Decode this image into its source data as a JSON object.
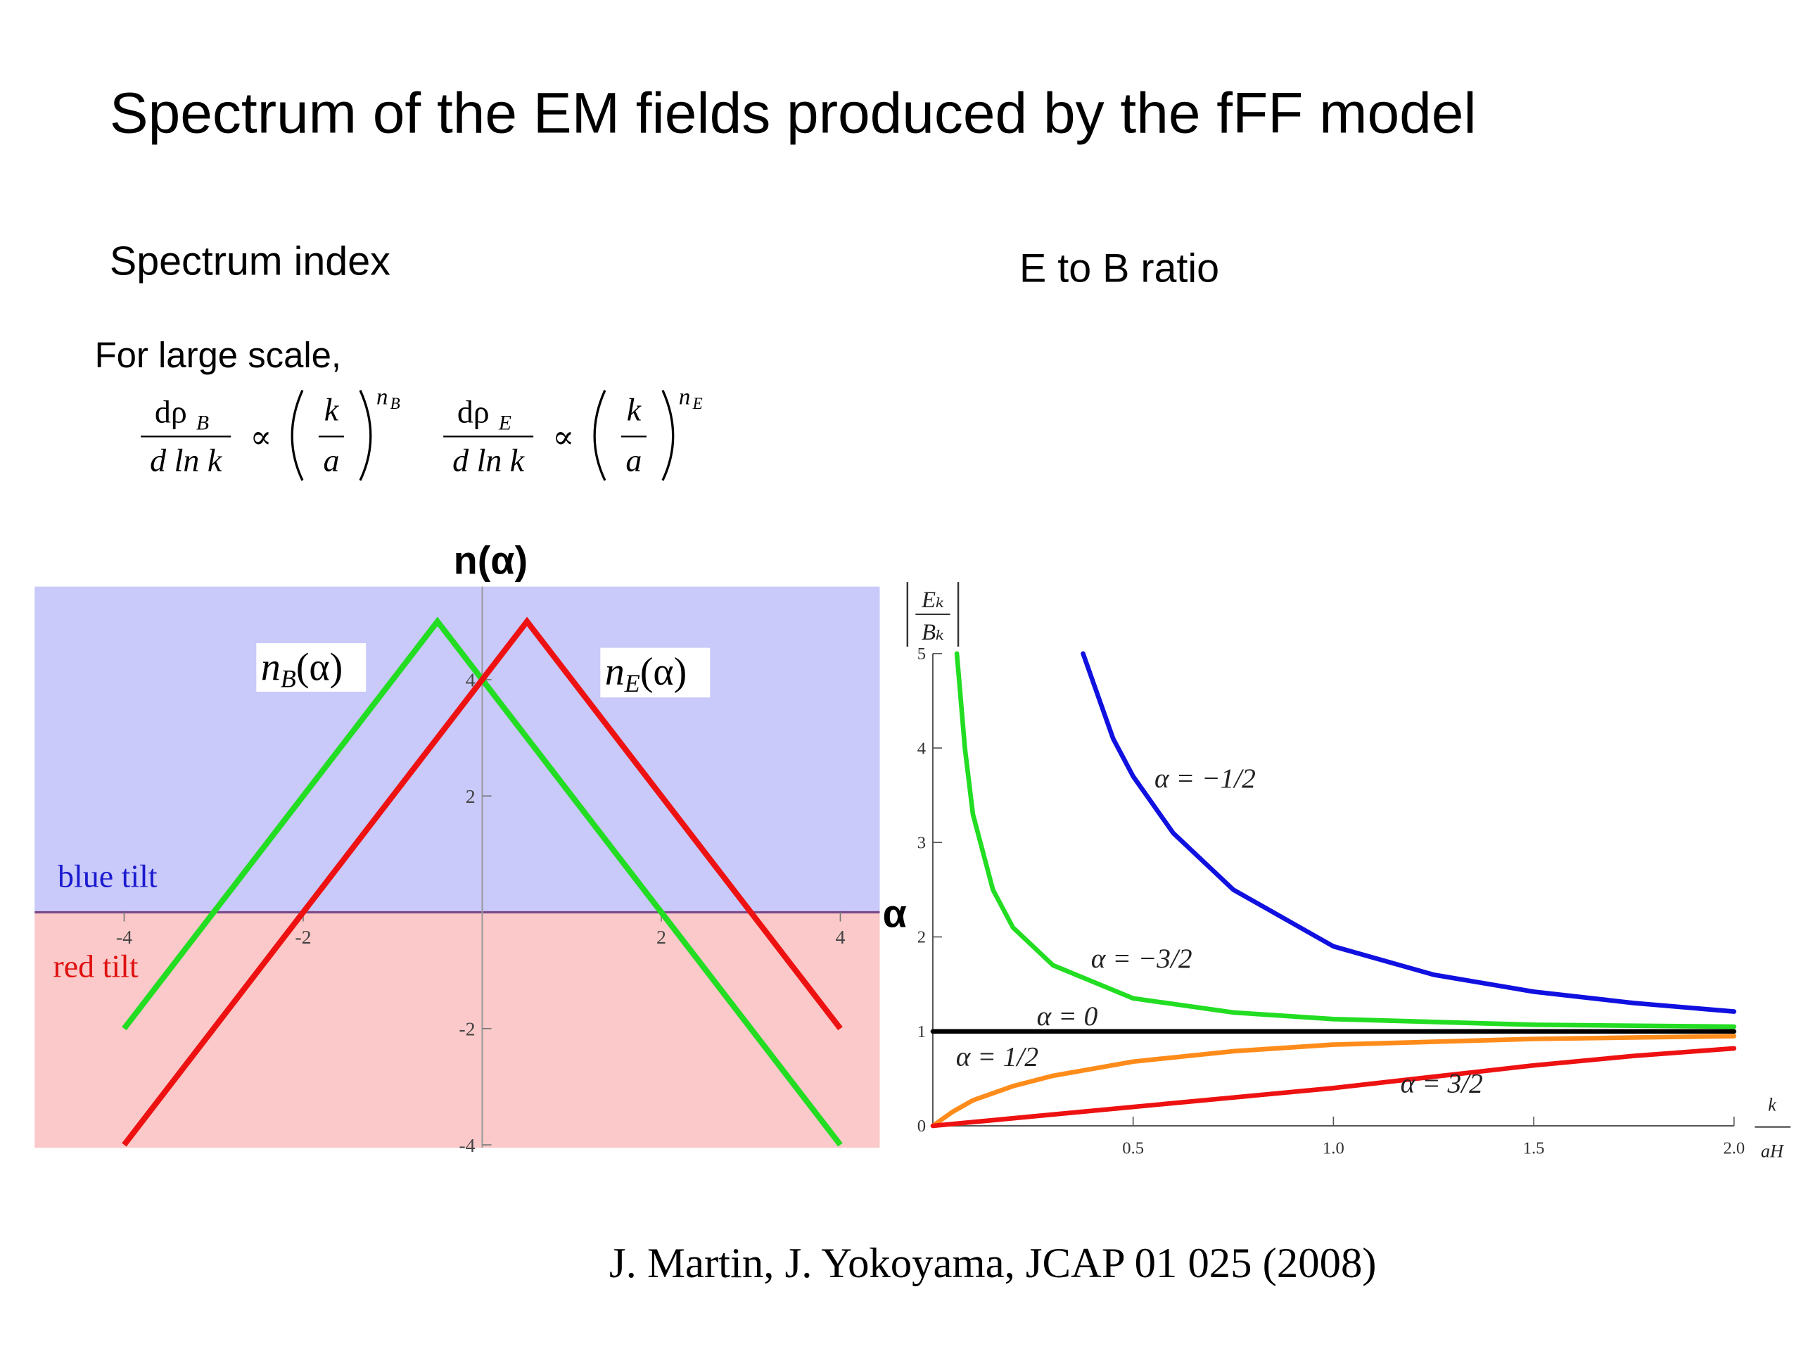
{
  "slide": {
    "title": "Spectrum of the EM fields produced by the fFF model",
    "left_heading": "Spectrum index",
    "right_heading": "E to B ratio",
    "note": "For large scale,",
    "formulas": [
      {
        "num": "dρ",
        "num_sub": "B",
        "den": "d ln k",
        "prop": "∝",
        "base_num": "k",
        "base_den": "a",
        "exp": "n",
        "exp_sub": "B"
      },
      {
        "num": "dρ",
        "num_sub": "E",
        "den": "d ln k",
        "prop": "∝",
        "base_num": "k",
        "base_den": "a",
        "exp": "n",
        "exp_sub": "E"
      }
    ],
    "citation": "J. Martin, J. Yokoyama, JCAP 01 025 (2008)"
  },
  "chart_data": [
    {
      "type": "line",
      "ylabel": "n(α)",
      "xlabel": "α",
      "xlim": [
        -5,
        4.44
      ],
      "ylim": [
        -4.05,
        5.6
      ],
      "xticks": [
        -4,
        -2,
        2,
        4
      ],
      "yticks": [
        -4,
        -2,
        2,
        4
      ],
      "regions": [
        {
          "label": "blue tilt",
          "color": "#c9c9fa",
          "label_color": "#1a1ad0",
          "y_range": [
            0,
            5.6
          ]
        },
        {
          "label": "red tilt",
          "color": "#fbc9c9",
          "label_color": "#e01010",
          "y_range": [
            -4.05,
            0
          ]
        }
      ],
      "series": [
        {
          "label": {
            "main": "n",
            "sub": "B",
            "arg": "(α)"
          },
          "color": "#22dd22",
          "x": [
            -4,
            -0.5,
            4
          ],
          "values": [
            -2,
            5,
            -4
          ]
        },
        {
          "label": {
            "main": "n",
            "sub": "E",
            "arg": "(α)"
          },
          "color": "#ee1111",
          "x": [
            -4,
            0.5,
            4
          ],
          "values": [
            -4,
            5,
            -2
          ]
        }
      ]
    },
    {
      "type": "line",
      "ylabel": {
        "num": "Eₖ",
        "den": "Bₖ"
      },
      "xlabel": {
        "num": "k",
        "den": "aH"
      },
      "xlim": [
        0,
        2
      ],
      "ylim": [
        0,
        5
      ],
      "xticks": [
        0.5,
        {
          "value": 1,
          "label": "1.0"
        },
        1.5,
        {
          "value": 2,
          "label": "2.0"
        }
      ],
      "yticks": [
        0,
        1,
        2,
        3,
        4,
        5
      ],
      "series": [
        {
          "name": "α = −1/2",
          "color": "#1010e0",
          "x": [
            0.375,
            0.45,
            0.5,
            0.6,
            0.75,
            1.0,
            1.25,
            1.5,
            1.75,
            2.0
          ],
          "values": [
            5,
            4.1,
            3.7,
            3.1,
            2.5,
            1.9,
            1.6,
            1.42,
            1.3,
            1.21
          ]
        },
        {
          "name": "α = −3/2",
          "color": "#22dd22",
          "x": [
            0.06,
            0.08,
            0.1,
            0.15,
            0.2,
            0.3,
            0.5,
            0.75,
            1.0,
            1.5,
            2.0
          ],
          "values": [
            5,
            4,
            3.3,
            2.5,
            2.1,
            1.7,
            1.35,
            1.2,
            1.13,
            1.07,
            1.05
          ]
        },
        {
          "name": "α = 0",
          "color": "#000000",
          "x": [
            0,
            2
          ],
          "values": [
            1,
            1
          ]
        },
        {
          "name": "α = 1/2",
          "color": "#ff8c1a",
          "x": [
            0,
            0.05,
            0.1,
            0.2,
            0.3,
            0.5,
            0.75,
            1.0,
            1.5,
            2.0
          ],
          "values": [
            0,
            0.15,
            0.27,
            0.42,
            0.53,
            0.68,
            0.79,
            0.86,
            0.92,
            0.95
          ]
        },
        {
          "name": "α = 3/2",
          "color": "#ee1111",
          "x": [
            0,
            0.25,
            0.5,
            0.75,
            1.0,
            1.25,
            1.5,
            1.75,
            2.0
          ],
          "values": [
            0,
            0.1,
            0.2,
            0.3,
            0.4,
            0.52,
            0.64,
            0.74,
            0.82
          ]
        }
      ]
    }
  ]
}
